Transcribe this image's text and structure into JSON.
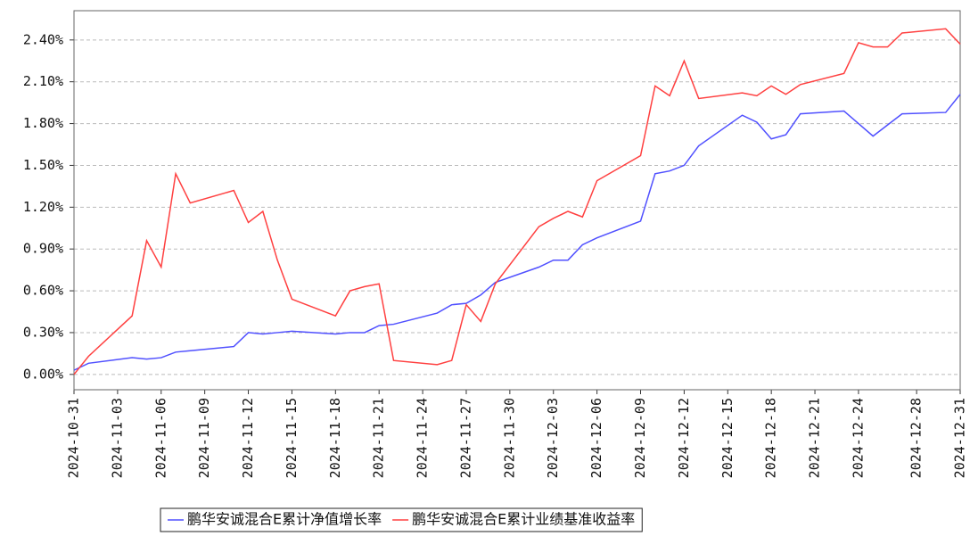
{
  "chart_data": {
    "type": "line",
    "x": [
      "2024-10-31",
      "2024-11-01",
      "2024-11-04",
      "2024-11-05",
      "2024-11-06",
      "2024-11-07",
      "2024-11-08",
      "2024-11-11",
      "2024-11-12",
      "2024-11-13",
      "2024-11-14",
      "2024-11-15",
      "2024-11-18",
      "2024-11-19",
      "2024-11-20",
      "2024-11-21",
      "2024-11-22",
      "2024-11-25",
      "2024-11-26",
      "2024-11-27",
      "2024-11-28",
      "2024-11-29",
      "2024-12-02",
      "2024-12-03",
      "2024-12-04",
      "2024-12-05",
      "2024-12-06",
      "2024-12-09",
      "2024-12-10",
      "2024-12-11",
      "2024-12-12",
      "2024-12-13",
      "2024-12-16",
      "2024-12-17",
      "2024-12-18",
      "2024-12-19",
      "2024-12-20",
      "2024-12-23",
      "2024-12-24",
      "2024-12-25",
      "2024-12-26",
      "2024-12-27",
      "2024-12-30",
      "2024-12-31"
    ],
    "series": [
      {
        "name": "鹏华安诚混合E累计净值增长率",
        "color": "#5050ff",
        "values": [
          0.03,
          0.08,
          0.12,
          0.11,
          0.12,
          0.16,
          0.17,
          0.2,
          0.3,
          0.29,
          0.3,
          0.31,
          0.29,
          0.3,
          0.3,
          0.35,
          0.36,
          0.44,
          0.5,
          0.51,
          0.57,
          0.66,
          0.77,
          0.82,
          0.82,
          0.93,
          0.98,
          1.1,
          1.44,
          1.46,
          1.5,
          1.64,
          1.86,
          1.81,
          1.69,
          1.72,
          1.87,
          1.89,
          1.8,
          1.71,
          1.79,
          1.87,
          1.88,
          2.01
        ]
      },
      {
        "name": "鹏华安诚混合E累计业绩基准收益率",
        "color": "#ff4040",
        "values": [
          0.0,
          0.13,
          0.42,
          0.96,
          0.77,
          1.44,
          1.23,
          1.32,
          1.09,
          1.17,
          0.82,
          0.54,
          0.42,
          0.6,
          0.63,
          0.65,
          0.1,
          0.07,
          0.1,
          0.5,
          0.38,
          0.65,
          1.06,
          1.12,
          1.17,
          1.13,
          1.39,
          1.57,
          2.07,
          2.0,
          2.25,
          1.98,
          2.02,
          2.0,
          2.07,
          2.01,
          2.08,
          2.16,
          2.38,
          2.35,
          2.35,
          2.45,
          2.48,
          2.37
        ]
      }
    ],
    "xlim": [
      "2024-10-31",
      "2024-12-31"
    ],
    "xticks": [
      "2024-10-31",
      "2024-11-03",
      "2024-11-06",
      "2024-11-09",
      "2024-11-12",
      "2024-11-15",
      "2024-11-18",
      "2024-11-21",
      "2024-11-24",
      "2024-11-27",
      "2024-11-30",
      "2024-12-03",
      "2024-12-06",
      "2024-12-09",
      "2024-12-12",
      "2024-12-15",
      "2024-12-18",
      "2024-12-21",
      "2024-12-24",
      "2024-12-28",
      "2024-12-31"
    ],
    "ylim": [
      -0.11,
      2.61
    ],
    "yticks": [
      {
        "value": 0,
        "label": "0.00%"
      },
      {
        "value": 0.3,
        "label": "0.30%"
      },
      {
        "value": 0.6,
        "label": "0.60%"
      },
      {
        "value": 0.9,
        "label": "0.90%"
      },
      {
        "value": 1.2,
        "label": "1.20%"
      },
      {
        "value": 1.5,
        "label": "1.50%"
      },
      {
        "value": 1.8,
        "label": "1.80%"
      },
      {
        "value": 2.1,
        "label": "2.10%"
      },
      {
        "value": 2.4,
        "label": "2.40%"
      }
    ],
    "grid": true,
    "legend": "bottom"
  }
}
